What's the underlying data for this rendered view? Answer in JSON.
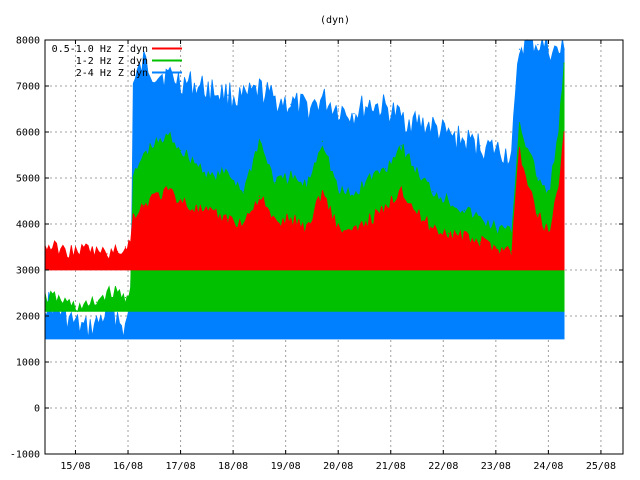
{
  "chart_data": {
    "type": "area",
    "title": "(dyn)",
    "xlabel": "",
    "ylabel": "",
    "ylim": [
      -1000,
      8000
    ],
    "y_ticks": [
      -1000,
      0,
      1000,
      2000,
      3000,
      4000,
      5000,
      6000,
      7000,
      8000
    ],
    "x_ticks": [
      "15/08",
      "16/08",
      "17/08",
      "18/08",
      "19/08",
      "20/08",
      "21/08",
      "22/08",
      "23/08",
      "24/08",
      "25/08"
    ],
    "x_tick_values": [
      15,
      16,
      17,
      18,
      19,
      20,
      21,
      22,
      23,
      24,
      25
    ],
    "xlim": [
      14.42,
      25.42
    ],
    "grid": true,
    "legend_position": "top-left",
    "series": [
      {
        "name": "2-4 Hz Z dyn",
        "color": "#0080ff",
        "x": [
          14.42,
          14.6,
          14.8,
          15.0,
          15.2,
          15.4,
          15.6,
          15.8,
          15.95,
          16.05,
          16.1,
          16.3,
          16.5,
          16.8,
          17.0,
          17.3,
          17.6,
          17.9,
          18.2,
          18.5,
          18.8,
          19.1,
          19.4,
          19.7,
          20.0,
          20.3,
          20.6,
          20.9,
          21.2,
          21.5,
          21.8,
          22.1,
          22.4,
          22.7,
          23.0,
          23.3,
          23.45,
          23.6,
          23.8,
          24.0,
          24.2,
          24.3
        ],
        "y": [
          2300,
          2200,
          2000,
          1800,
          1700,
          1800,
          2100,
          2000,
          1700,
          2300,
          7000,
          7500,
          7300,
          7200,
          7100,
          7000,
          6900,
          6800,
          6700,
          6900,
          6700,
          6600,
          6500,
          6700,
          6500,
          6400,
          6600,
          6500,
          6300,
          6200,
          6100,
          5900,
          5800,
          5700,
          5600,
          5500,
          7800,
          8000,
          7900,
          7800,
          7700,
          7800
        ]
      },
      {
        "name": "1-2 Hz Z dyn",
        "color": "#00c000",
        "x": [
          14.42,
          14.6,
          14.8,
          15.0,
          15.2,
          15.4,
          15.6,
          15.8,
          15.95,
          16.05,
          16.1,
          16.3,
          16.5,
          16.8,
          17.0,
          17.3,
          17.6,
          17.9,
          18.2,
          18.5,
          18.8,
          19.1,
          19.4,
          19.7,
          20.0,
          20.3,
          20.6,
          20.9,
          21.2,
          21.5,
          21.8,
          22.1,
          22.4,
          22.7,
          23.0,
          23.3,
          23.45,
          23.6,
          23.8,
          24.0,
          24.2,
          24.3
        ],
        "y": [
          2400,
          2400,
          2300,
          2200,
          2200,
          2300,
          2500,
          2500,
          2400,
          2600,
          5000,
          5500,
          5700,
          5900,
          5600,
          5300,
          5000,
          5100,
          4700,
          5800,
          4900,
          5000,
          4800,
          5800,
          4700,
          4600,
          5000,
          5200,
          5700,
          5100,
          4700,
          4500,
          4300,
          4100,
          3900,
          3800,
          6200,
          5600,
          5000,
          4600,
          6000,
          7500
        ]
      },
      {
        "name": "0.5-1.0 Hz Z dyn",
        "color": "#ff0000",
        "x": [
          14.42,
          14.6,
          14.8,
          15.0,
          15.2,
          15.4,
          15.6,
          15.8,
          15.95,
          16.05,
          16.1,
          16.3,
          16.5,
          16.8,
          17.0,
          17.3,
          17.6,
          17.9,
          18.2,
          18.5,
          18.8,
          19.1,
          19.4,
          19.7,
          20.0,
          20.3,
          20.6,
          20.9,
          21.2,
          21.5,
          21.8,
          22.1,
          22.4,
          22.7,
          23.0,
          23.3,
          23.45,
          23.6,
          23.8,
          24.0,
          24.2,
          24.3
        ],
        "y": [
          3500,
          3500,
          3400,
          3400,
          3450,
          3400,
          3350,
          3400,
          3500,
          3600,
          4200,
          4400,
          4600,
          4700,
          4500,
          4300,
          4200,
          4100,
          4000,
          4600,
          4000,
          4100,
          3900,
          4700,
          3900,
          3800,
          4100,
          4300,
          4800,
          4200,
          3900,
          3800,
          3700,
          3600,
          3500,
          3400,
          5600,
          4800,
          4200,
          3800,
          4800,
          6000
        ]
      }
    ]
  }
}
